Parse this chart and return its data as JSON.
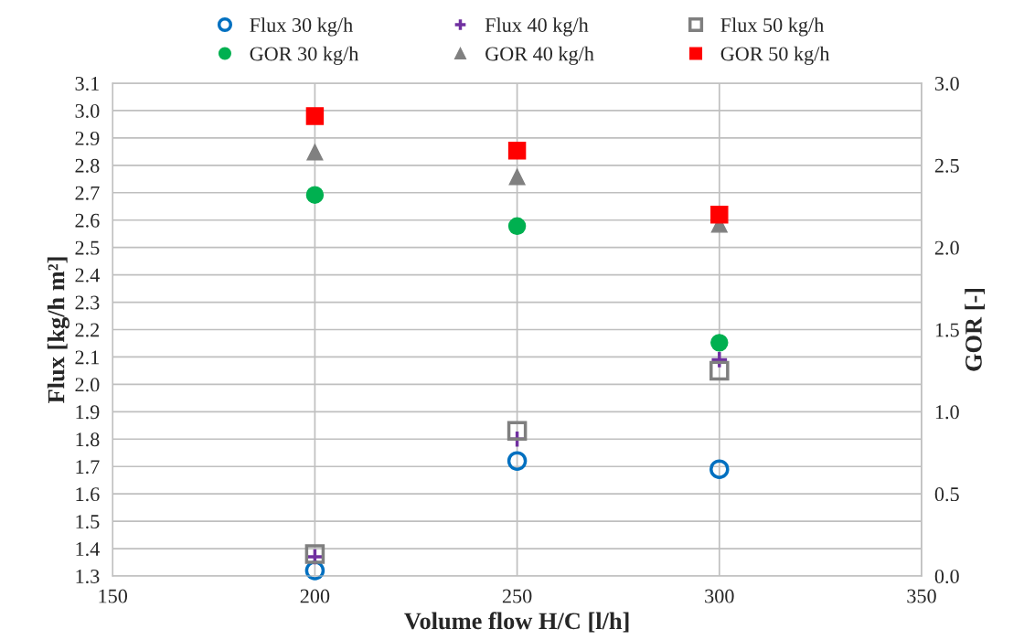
{
  "chart_data": {
    "type": "scatter",
    "xlabel": "Volume flow H/C [l/h]",
    "ylabel": "Flux [kg/h m²]",
    "y2label": "GOR [-]",
    "x": [
      200,
      250,
      300
    ],
    "series": [
      {
        "name": "Flux 30 kg/h",
        "color": "#0070c0",
        "marker": "circle",
        "values": [
          1.32,
          1.72,
          1.69
        ]
      },
      {
        "name": "Flux 40 kg/h",
        "color": "#7030a0",
        "marker": "cross",
        "values": [
          1.37,
          1.8,
          2.09
        ]
      },
      {
        "name": "Flux 50 kg/h",
        "color": "#7f7f7f",
        "marker": "square",
        "values": [
          1.38,
          1.83,
          2.05
        ]
      },
      {
        "name": "GOR 30 kg/h",
        "color": "#00b050",
        "marker": "circle",
        "axis": "y2",
        "values": [
          2.32,
          2.13,
          1.42
        ]
      },
      {
        "name": "GOR 40 kg/h",
        "color": "#808080",
        "marker": "triangle",
        "axis": "y2",
        "values": [
          2.58,
          2.43,
          2.14
        ]
      },
      {
        "name": "GOR 50 kg/h",
        "color": "#ff0000",
        "marker": "square",
        "axis": "y2",
        "values": [
          2.8,
          2.59,
          2.2
        ]
      }
    ],
    "xlim": [
      150,
      350
    ],
    "xticks": [
      150,
      200,
      250,
      300,
      350
    ],
    "ylim": [
      1.3,
      3.1
    ],
    "yticks": [
      {
        "value": 1.3,
        "label": "1.3"
      },
      {
        "value": 1.4,
        "label": "1.4"
      },
      {
        "value": 1.5,
        "label": "1.5"
      },
      {
        "value": 1.6,
        "label": "1.6"
      },
      {
        "value": 1.7,
        "label": "1.7"
      },
      {
        "value": 1.8,
        "label": "1.8"
      },
      {
        "value": 1.9,
        "label": "1.9"
      },
      {
        "value": 2.0,
        "label": "2.0"
      },
      {
        "value": 2.1,
        "label": "2.1"
      },
      {
        "value": 2.2,
        "label": "2.2"
      },
      {
        "value": 2.3,
        "label": "2.3"
      },
      {
        "value": 2.4,
        "label": "2.4"
      },
      {
        "value": 2.5,
        "label": "2.5"
      },
      {
        "value": 2.6,
        "label": "2.6"
      },
      {
        "value": 2.7,
        "label": "2.7"
      },
      {
        "value": 2.8,
        "label": "2.8"
      },
      {
        "value": 2.9,
        "label": "2.9"
      },
      {
        "value": 3.0,
        "label": "3.0"
      },
      {
        "value": 3.1,
        "label": "3.1"
      }
    ],
    "y2lim": [
      0,
      3.0
    ],
    "y2ticks": [
      {
        "value": 0,
        "label": "0.0"
      },
      {
        "value": 0.5,
        "label": "0.5"
      },
      {
        "value": 1.0,
        "label": "1.0"
      },
      {
        "value": 1.5,
        "label": "1.5"
      },
      {
        "value": 2.0,
        "label": "2.0"
      },
      {
        "value": 2.5,
        "label": "2.5"
      },
      {
        "value": 3.0,
        "label": "3.0"
      }
    ],
    "grid": true,
    "legend": "top"
  }
}
